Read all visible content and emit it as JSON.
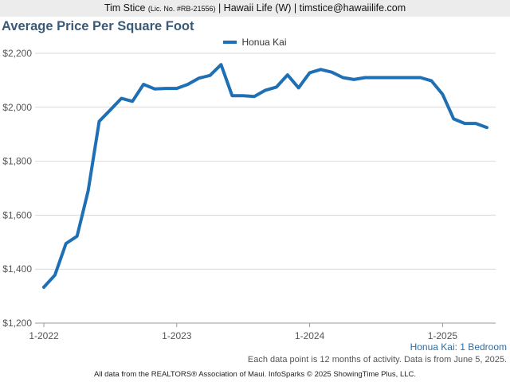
{
  "header": {
    "agent_name": "Tim Stice",
    "license": "(Lic. No. #RB-21556)",
    "rest": "| Hawaii Life (W) | timstice@hawaiilife.com"
  },
  "chart_data": {
    "type": "line",
    "title": "Average Price Per Square Foot",
    "xlabel": "",
    "ylabel": "",
    "ylim": [
      1200,
      2200
    ],
    "yticks": [
      1200,
      1400,
      1600,
      1800,
      2000,
      2200
    ],
    "ytick_labels": [
      "$1,200",
      "$1,400",
      "$1,600",
      "$1,800",
      "$2,000",
      "$2,200"
    ],
    "xticks": [
      "1-2022",
      "1-2023",
      "1-2024",
      "1-2025"
    ],
    "grid": "horizontal",
    "legend": "top-center",
    "color": "#1f6fb5",
    "x": [
      "2022-01",
      "2022-02",
      "2022-03",
      "2022-04",
      "2022-05",
      "2022-06",
      "2022-07",
      "2022-08",
      "2022-09",
      "2022-10",
      "2022-11",
      "2022-12",
      "2023-01",
      "2023-02",
      "2023-03",
      "2023-04",
      "2023-05",
      "2023-06",
      "2023-07",
      "2023-08",
      "2023-09",
      "2023-10",
      "2023-11",
      "2023-12",
      "2024-01",
      "2024-02",
      "2024-03",
      "2024-04",
      "2024-05",
      "2024-06",
      "2024-07",
      "2024-08",
      "2024-09",
      "2024-10",
      "2024-11",
      "2024-12",
      "2025-01",
      "2025-02",
      "2025-03",
      "2025-04",
      "2025-05"
    ],
    "series": [
      {
        "name": "Honua Kai",
        "values": [
          1333,
          1378,
          1495,
          1522,
          1690,
          1948,
          1990,
          2033,
          2022,
          2085,
          2068,
          2070,
          2070,
          2085,
          2108,
          2118,
          2158,
          2043,
          2043,
          2040,
          2063,
          2075,
          2120,
          2072,
          2128,
          2140,
          2130,
          2110,
          2103,
          2110,
          2110,
          2110,
          2110,
          2110,
          2110,
          2098,
          2048,
          1957,
          1940,
          1940,
          1925
        ]
      }
    ]
  },
  "subtitle": "Honua Kai: 1 Bedroom",
  "activity_note": "Each data point is 12 months of activity. Data is from June 5, 2025.",
  "footer": "All data from the REALTORS® Association of Maui. InfoSparks © 2025 ShowingTime Plus, LLC."
}
